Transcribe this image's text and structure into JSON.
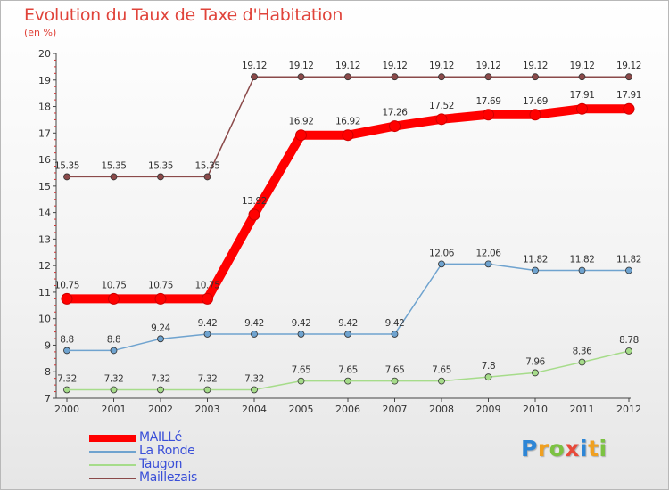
{
  "title": "Evolution du Taux de Taxe d'Habitation",
  "unit": "(en %)",
  "logo": {
    "letters": [
      "P",
      "r",
      "o",
      "x",
      "i",
      "t",
      "i"
    ],
    "colors": [
      "#2e86d6",
      "#f0a020",
      "#7cc242",
      "#e84a3a",
      "#2e86d6",
      "#f0a020",
      "#7cc242"
    ]
  },
  "chart_data": {
    "type": "line",
    "title": "Evolution du Taux de Taxe d'Habitation",
    "ylabel": "(en %)",
    "xlabel": "",
    "ylim": [
      7,
      20
    ],
    "yticks": [
      7,
      8,
      9,
      10,
      11,
      12,
      13,
      14,
      15,
      16,
      17,
      18,
      19,
      20
    ],
    "x": [
      "2000",
      "2001",
      "2002",
      "2003",
      "2004",
      "2005",
      "2006",
      "2007",
      "2008",
      "2009",
      "2010",
      "2011",
      "2012"
    ],
    "grid": false,
    "legend_position": "bottom-left",
    "series": [
      {
        "name": "MAILLé",
        "color": "#ff0000",
        "values": [
          10.75,
          10.75,
          10.75,
          10.75,
          13.92,
          16.92,
          16.92,
          17.26,
          17.52,
          17.69,
          17.69,
          17.91,
          17.91
        ],
        "labels": [
          "10.75",
          "10.75",
          "10.75",
          "10.75",
          "13.92",
          "16.92",
          "16.92",
          "17.26",
          "17.52",
          "17.69",
          "17.69",
          "17.91",
          "17.91"
        ]
      },
      {
        "name": "La Ronde",
        "color": "#6fa3cf",
        "values": [
          8.8,
          8.8,
          9.24,
          9.42,
          9.42,
          9.42,
          9.42,
          9.42,
          12.06,
          12.06,
          11.82,
          11.82,
          11.82
        ],
        "labels": [
          "8.8",
          "8.8",
          "9.24",
          "9.42",
          "9.42",
          "9.42",
          "9.42",
          "9.42",
          "12.06",
          "12.06",
          "11.82",
          "11.82",
          "11.82"
        ]
      },
      {
        "name": "Taugon",
        "color": "#a6dc8a",
        "values": [
          7.32,
          7.32,
          7.32,
          7.32,
          7.32,
          7.65,
          7.65,
          7.65,
          7.65,
          7.8,
          7.96,
          8.36,
          8.78
        ],
        "labels": [
          "7.32",
          "7.32",
          "7.32",
          "7.32",
          "7.32",
          "7.65",
          "7.65",
          "7.65",
          "7.65",
          "7.8",
          "7.96",
          "8.36",
          "8.78"
        ]
      },
      {
        "name": "Maillezais",
        "color": "#8b4a4a",
        "values": [
          15.35,
          15.35,
          15.35,
          15.35,
          19.12,
          19.12,
          19.12,
          19.12,
          19.12,
          19.12,
          19.12,
          19.12,
          19.12
        ],
        "labels": [
          "15.35",
          "15.35",
          "15.35",
          "15.35",
          "19.12",
          "19.12",
          "19.12",
          "19.12",
          "19.12",
          "19.12",
          "19.12",
          "19.12",
          "19.12"
        ]
      }
    ]
  }
}
